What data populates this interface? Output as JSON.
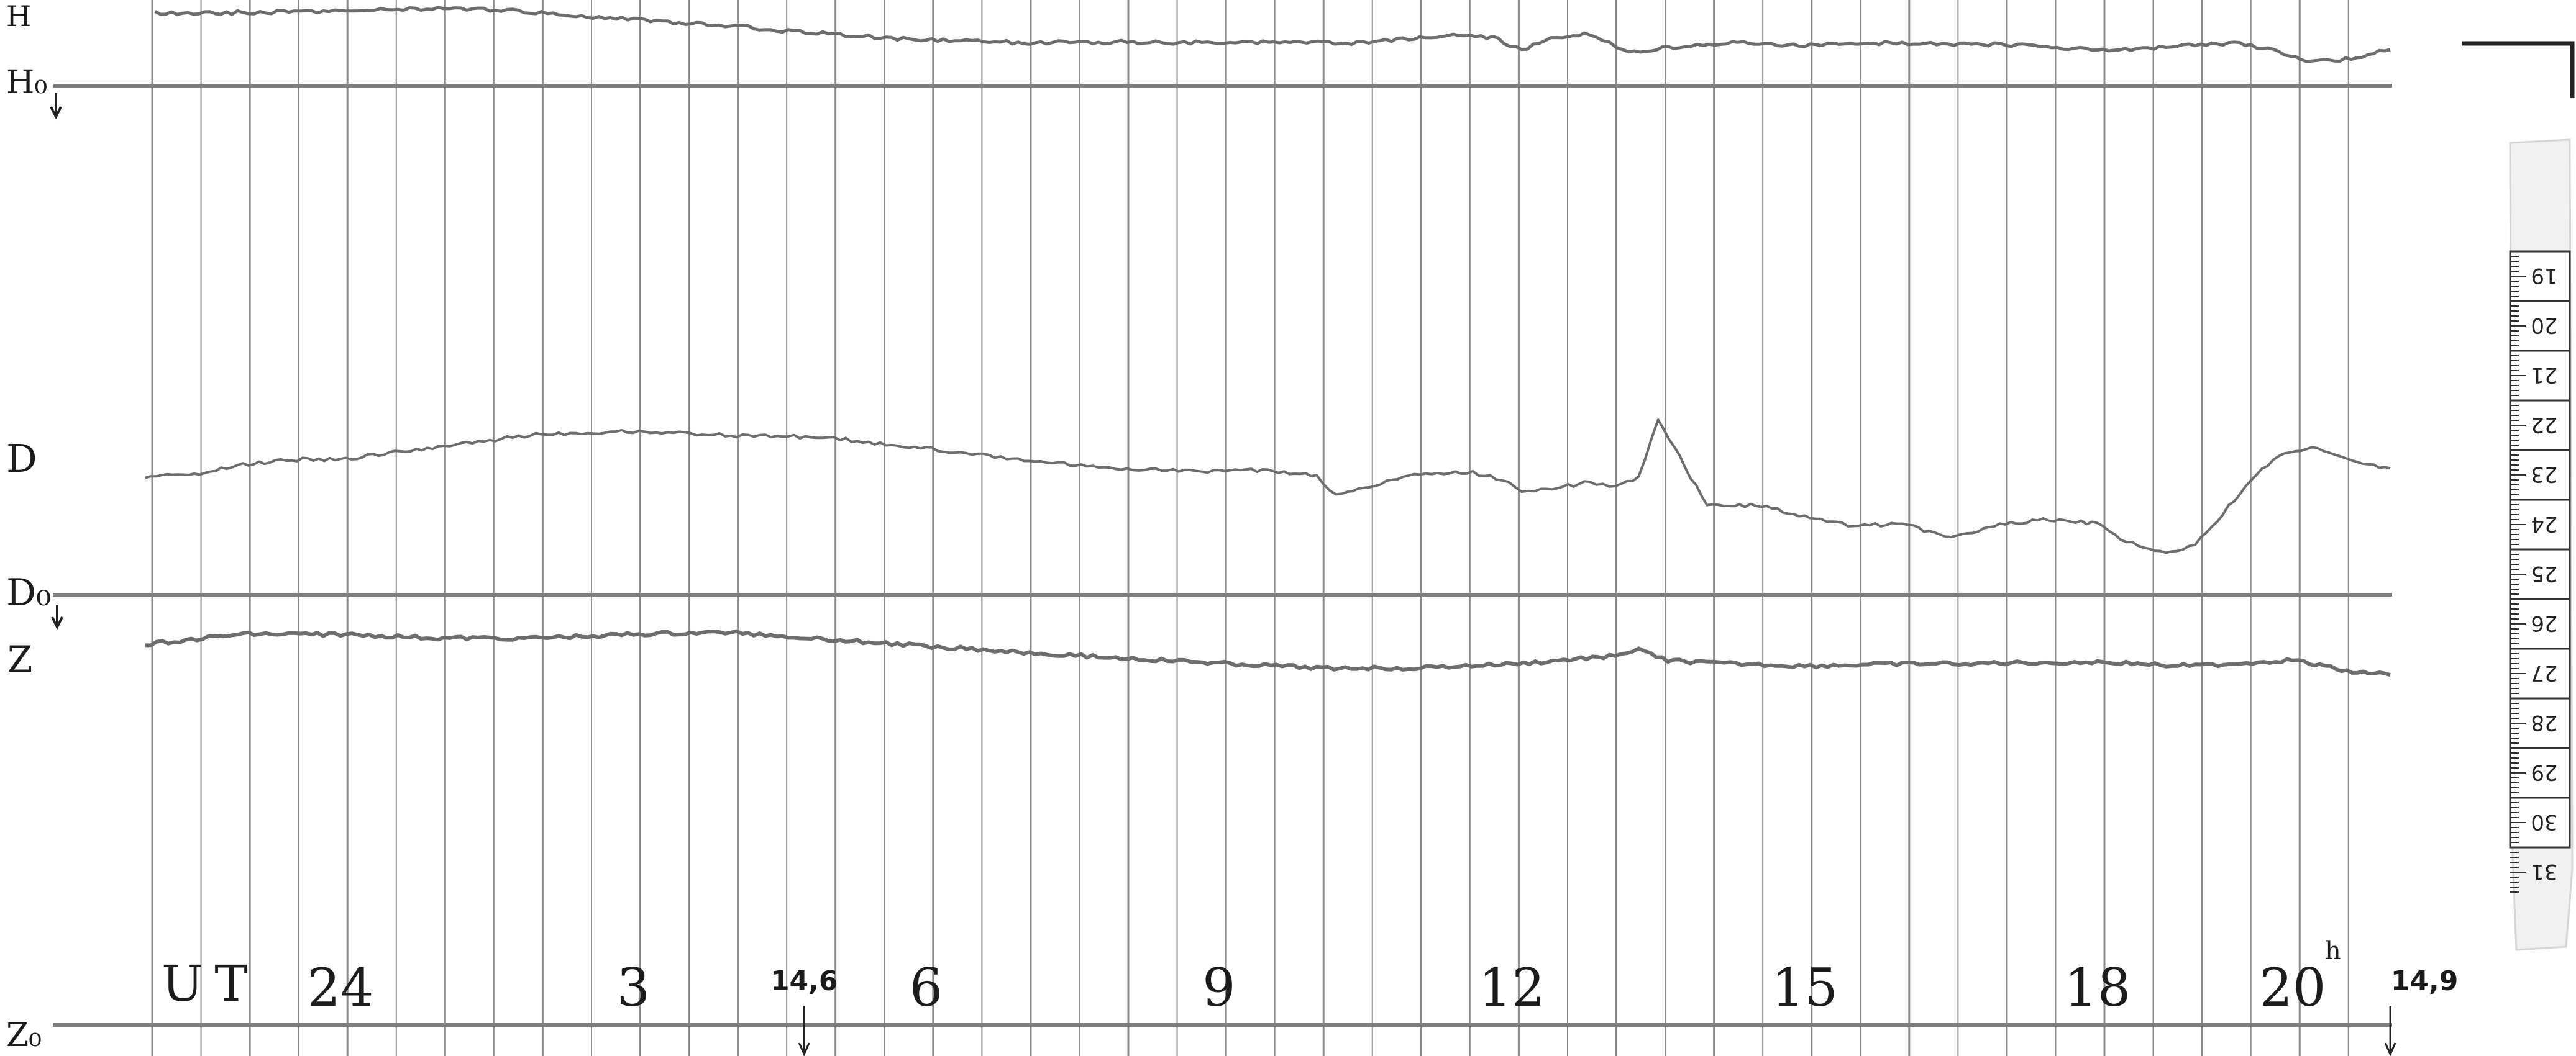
{
  "chart_data": {
    "type": "line",
    "title": "",
    "xlabel": "UT",
    "ylabel": "",
    "x_unit_label": "h",
    "xlim": [
      22,
      21
    ],
    "series": [
      {
        "name": "H",
        "x": [
          22.1,
          23.0,
          24.0,
          1.0,
          2.0,
          3.0,
          4.0,
          5.0,
          6.0,
          7.0,
          8.0,
          9.0,
          9.9,
          10.3,
          11.0,
          11.4,
          11.8,
          12.1,
          12.4,
          12.8,
          13.0,
          13.2,
          13.6,
          14.2,
          15.0,
          16.0,
          17.0,
          18.0,
          18.4,
          19.0,
          19.4,
          19.8,
          20.2,
          20.6,
          21.0
        ],
        "y": [
          0.87,
          0.874,
          0.888,
          0.918,
          0.88,
          0.802,
          0.738,
          0.657,
          0.596,
          0.57,
          0.577,
          0.57,
          0.57,
          0.562,
          0.613,
          0.65,
          0.625,
          0.495,
          0.628,
          0.654,
          0.575,
          0.47,
          0.52,
          0.573,
          0.545,
          0.568,
          0.553,
          0.506,
          0.503,
          0.545,
          0.57,
          0.49,
          0.38,
          0.41,
          0.5
        ]
      },
      {
        "name": "D",
        "x": [
          22.0,
          22.5,
          23.0,
          23.5,
          24.0,
          0.5,
          1.0,
          2.0,
          3.0,
          4.0,
          5.0,
          6.0,
          7.0,
          8.0,
          9.0,
          9.5,
          10.0,
          10.2,
          11.0,
          11.6,
          11.9,
          12.1,
          12.3,
          12.8,
          13.0,
          13.3,
          13.5,
          14.0,
          14.5,
          15.0,
          15.5,
          16.0,
          16.5,
          17.0,
          17.5,
          18.0,
          18.3,
          18.7,
          19.0,
          19.4,
          19.8,
          20.2,
          20.6,
          21.0
        ],
        "y": [
          0.54,
          0.55,
          0.6,
          0.625,
          0.625,
          0.655,
          0.69,
          0.75,
          0.765,
          0.745,
          0.735,
          0.68,
          0.62,
          0.58,
          0.565,
          0.57,
          0.545,
          0.445,
          0.55,
          0.56,
          0.52,
          0.47,
          0.47,
          0.51,
          0.485,
          0.53,
          0.83,
          0.39,
          0.395,
          0.34,
          0.29,
          0.3,
          0.23,
          0.3,
          0.325,
          0.3,
          0.21,
          0.15,
          0.19,
          0.42,
          0.63,
          0.69,
          0.62,
          0.58
        ]
      },
      {
        "name": "Z",
        "x": [
          22.0,
          23.0,
          24.0,
          1.0,
          2.0,
          3.0,
          4.0,
          5.0,
          6.0,
          7.0,
          8.0,
          9.0,
          10.0,
          11.0,
          12.0,
          12.3,
          13.0,
          13.3,
          13.6,
          14.0,
          15.0,
          16.0,
          17.0,
          18.0,
          19.0,
          20.0,
          20.5,
          21.0
        ],
        "y": [
          0.64,
          0.74,
          0.74,
          0.7,
          0.7,
          0.74,
          0.76,
          0.69,
          0.62,
          0.56,
          0.5,
          0.45,
          0.4,
          0.4,
          0.44,
          0.46,
          0.52,
          0.58,
          0.48,
          0.45,
          0.42,
          0.44,
          0.45,
          0.46,
          0.42,
          0.48,
          0.38,
          0.33
        ]
      }
    ],
    "baselines": [
      {
        "name": "H₀"
      },
      {
        "name": "D₀"
      },
      {
        "name": "Z₀"
      }
    ],
    "hour_labels": [
      {
        "text": "24",
        "hour": 24
      },
      {
        "text": "3",
        "hour": 3
      },
      {
        "text": "6",
        "hour": 6
      },
      {
        "text": "9",
        "hour": 9
      },
      {
        "text": "12",
        "hour": 12
      },
      {
        "text": "15",
        "hour": 15
      },
      {
        "text": "18",
        "hour": 18
      },
      {
        "text": "20",
        "hour": 20
      }
    ],
    "time_marks": [
      {
        "text": "14,6",
        "hour": 4.75
      },
      {
        "text": "14,9",
        "hour": 21.0
      }
    ],
    "scale_ticks": [
      "19",
      "20",
      "21",
      "22",
      "23",
      "24",
      "25",
      "26",
      "27",
      "28",
      "29",
      "30",
      "31"
    ],
    "grid": true,
    "legend": "none"
  }
}
